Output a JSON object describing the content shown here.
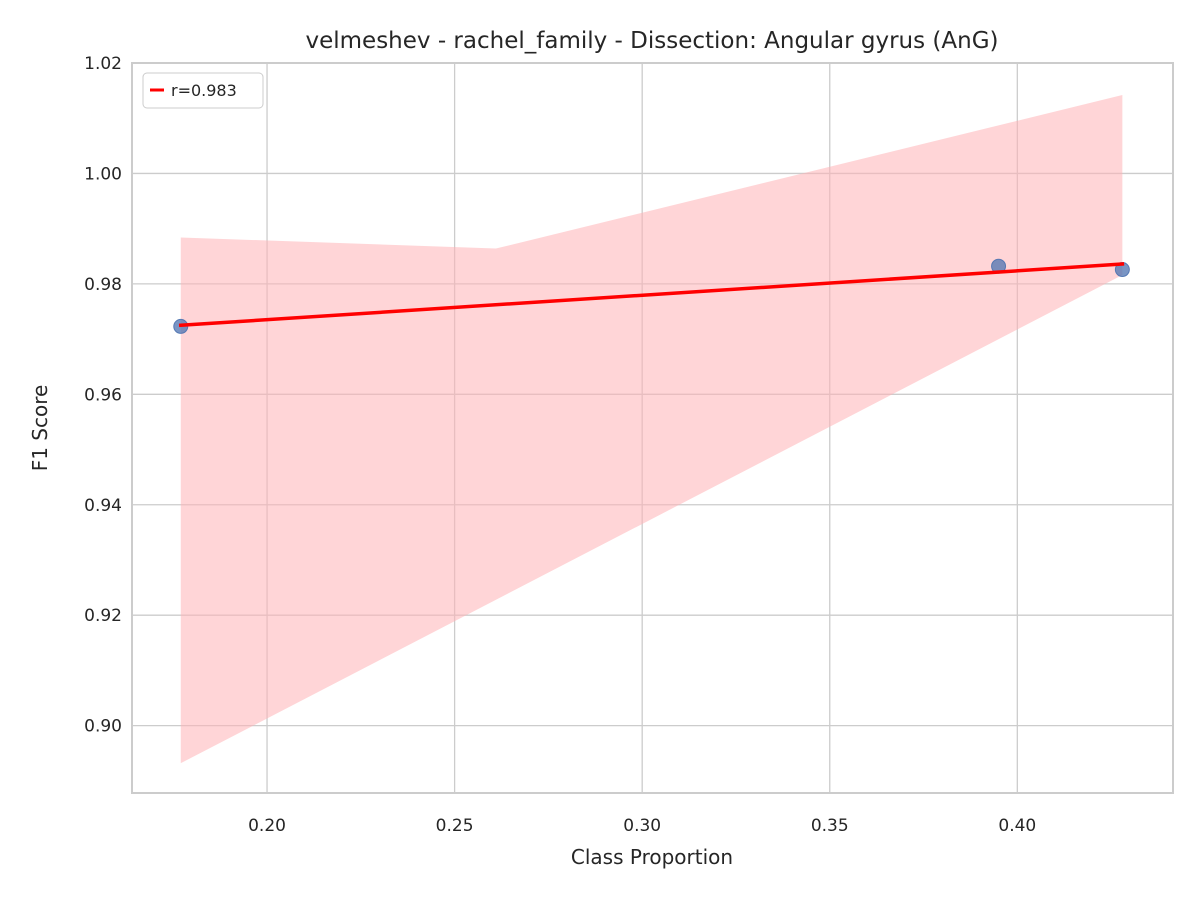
{
  "chart_data": {
    "type": "scatter",
    "title": "velmeshev - rachel_family - Dissection: Angular gyrus (AnG)",
    "xlabel": "Class Proportion",
    "ylabel": "F1 Score",
    "xlim": [
      0.164,
      0.4415
    ],
    "ylim": [
      0.8878,
      1.02
    ],
    "x_ticks": [
      0.2,
      0.25,
      0.3,
      0.35,
      0.4
    ],
    "x_tick_labels": [
      "0.20",
      "0.25",
      "0.30",
      "0.35",
      "0.40"
    ],
    "y_ticks": [
      0.9,
      0.92,
      0.94,
      0.96,
      0.98,
      1.0,
      1.02
    ],
    "y_tick_labels": [
      "0.90",
      "0.92",
      "0.94",
      "0.96",
      "0.98",
      "1.00",
      "1.02"
    ],
    "grid": true,
    "legend_position": "top-left",
    "series": [
      {
        "kind": "points",
        "color": "#4c72b0",
        "points": [
          {
            "x": 0.177,
            "y": 0.9723
          },
          {
            "x": 0.395,
            "y": 0.9832
          },
          {
            "x": 0.428,
            "y": 0.9826
          }
        ]
      },
      {
        "kind": "regression",
        "name": "r=0.983",
        "color": "#ff0000",
        "line": [
          {
            "x": 0.177,
            "y": 0.9725
          },
          {
            "x": 0.428,
            "y": 0.9836
          }
        ],
        "ci_band": {
          "color": "#ffb3b6",
          "upper": [
            {
              "x": 0.177,
              "y": 0.9884
            },
            {
              "x": 0.261,
              "y": 0.9864
            },
            {
              "x": 0.428,
              "y": 1.0142
            }
          ],
          "lower": [
            {
              "x": 0.177,
              "y": 0.8932
            },
            {
              "x": 0.428,
              "y": 0.9816
            }
          ]
        }
      }
    ]
  }
}
